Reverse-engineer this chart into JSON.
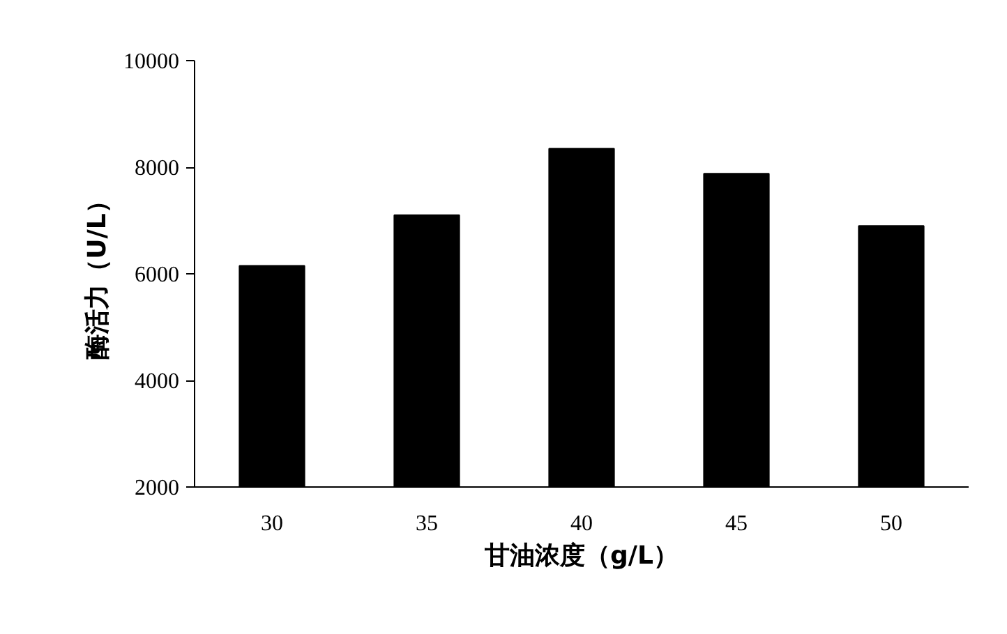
{
  "chart_data": {
    "type": "bar",
    "xlabel": "甘油浓度（g/L）",
    "ylabel": "酶活力（U/L）",
    "categories": [
      "30",
      "35",
      "40",
      "45",
      "50"
    ],
    "values": [
      6150,
      7100,
      8350,
      7880,
      6900
    ],
    "color": "#000000",
    "ylim": [
      2000,
      10000
    ],
    "yticks": [
      2000,
      4000,
      6000,
      8000,
      10000
    ],
    "grid": false
  }
}
